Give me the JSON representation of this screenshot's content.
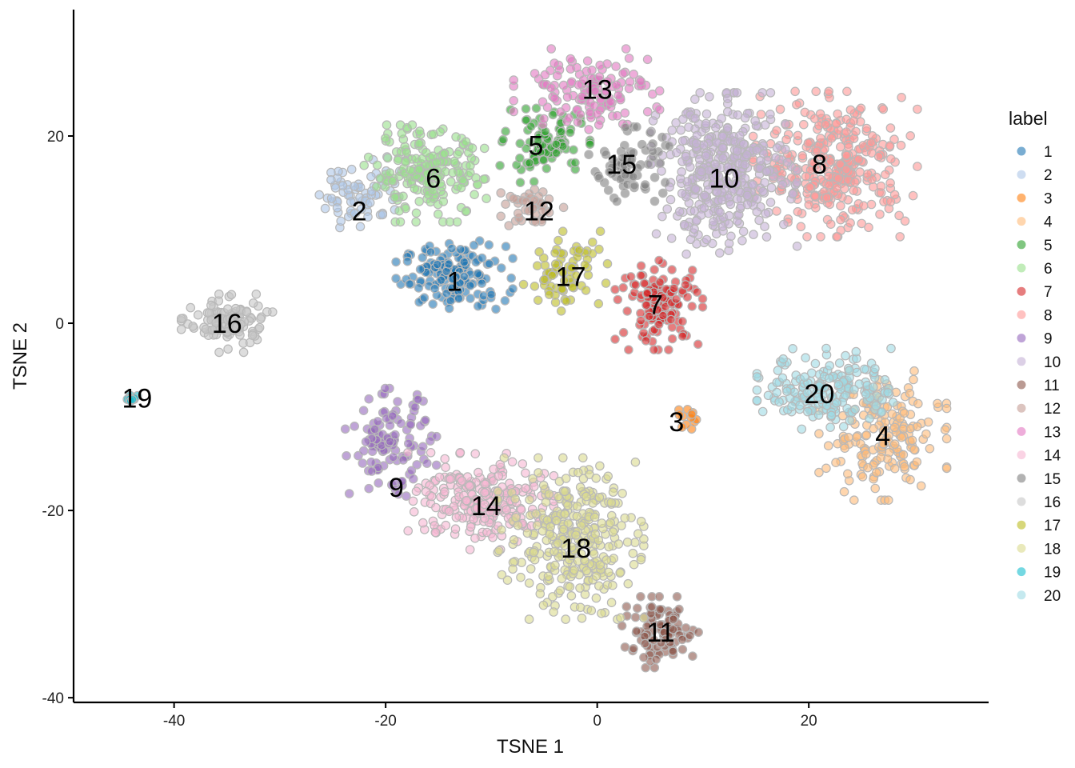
{
  "chart_data": {
    "type": "scatter",
    "xlabel": "TSNE 1",
    "ylabel": "TSNE 2",
    "xlim": [
      -49.5,
      37
    ],
    "ylim": [
      -40.5,
      33.5
    ],
    "xticks": [
      -40,
      -20,
      0,
      20
    ],
    "yticks": [
      -40,
      -20,
      0,
      20
    ],
    "grid": false,
    "legend": {
      "title": "label",
      "position": "right",
      "labels": [
        "1",
        "2",
        "3",
        "4",
        "5",
        "6",
        "7",
        "8",
        "9",
        "10",
        "11",
        "12",
        "13",
        "14",
        "15",
        "16",
        "17",
        "18",
        "19",
        "20"
      ]
    },
    "clusters": [
      {
        "label": "1",
        "color": "#1f77b4",
        "center": [
          -13.5,
          5
        ],
        "spread": [
          3.2,
          2.2
        ],
        "count": 160
      },
      {
        "label": "2",
        "color": "#aec7e8",
        "center": [
          -22.5,
          14
        ],
        "spread": [
          2.5,
          2.5
        ],
        "count": 70
      },
      {
        "label": "3",
        "color": "#ff7f0e",
        "center": [
          8,
          -10
        ],
        "spread": [
          0.8,
          0.9
        ],
        "count": 12
      },
      {
        "label": "4",
        "color": "#ffbb78",
        "center": [
          27,
          -12
        ],
        "spread": [
          3.5,
          4
        ],
        "count": 180
      },
      {
        "label": "5",
        "color": "#2ca02c",
        "center": [
          -5,
          19
        ],
        "spread": [
          2.5,
          2.3
        ],
        "count": 95
      },
      {
        "label": "6",
        "color": "#98df8a",
        "center": [
          -16,
          16
        ],
        "spread": [
          3.5,
          3
        ],
        "count": 190
      },
      {
        "label": "7",
        "color": "#d62728",
        "center": [
          6,
          2
        ],
        "spread": [
          2.5,
          2.8
        ],
        "count": 135
      },
      {
        "label": "8",
        "color": "#ff9896",
        "center": [
          22.5,
          17
        ],
        "spread": [
          4.5,
          4.5
        ],
        "count": 330
      },
      {
        "label": "9",
        "color": "#9467bd",
        "center": [
          -19.5,
          -13
        ],
        "spread": [
          2.5,
          3.5
        ],
        "count": 120
      },
      {
        "label": "10",
        "color": "#c5b0d5",
        "center": [
          12,
          16
        ],
        "spread": [
          4,
          5
        ],
        "count": 390
      },
      {
        "label": "11",
        "color": "#8c564b",
        "center": [
          6,
          -33
        ],
        "spread": [
          2.3,
          2.2
        ],
        "count": 100
      },
      {
        "label": "12",
        "color": "#c49c94",
        "center": [
          -6,
          12.5
        ],
        "spread": [
          1.8,
          1.5
        ],
        "count": 40
      },
      {
        "label": "13",
        "color": "#e377c2",
        "center": [
          -1,
          25
        ],
        "spread": [
          4,
          2.5
        ],
        "count": 130
      },
      {
        "label": "14",
        "color": "#f7b6d2",
        "center": [
          -11,
          -19
        ],
        "spread": [
          4,
          3
        ],
        "count": 230
      },
      {
        "label": "15",
        "color": "#7f7f7f",
        "center": [
          3,
          17
        ],
        "spread": [
          2.2,
          2.3
        ],
        "count": 75
      },
      {
        "label": "16",
        "color": "#c7c7c7",
        "center": [
          -35,
          0
        ],
        "spread": [
          2.5,
          1.8
        ],
        "count": 110
      },
      {
        "label": "17",
        "color": "#bcbd22",
        "center": [
          -3,
          5.5
        ],
        "spread": [
          2.3,
          2.5
        ],
        "count": 75
      },
      {
        "label": "18",
        "color": "#dbdb8d",
        "center": [
          -2.5,
          -23
        ],
        "spread": [
          4,
          5
        ],
        "count": 310
      },
      {
        "label": "19",
        "color": "#17becf",
        "center": [
          -44,
          -8
        ],
        "spread": [
          0.4,
          0.4
        ],
        "count": 10
      },
      {
        "label": "20",
        "color": "#9edae5",
        "center": [
          22,
          -7
        ],
        "spread": [
          4,
          2.5
        ],
        "count": 190
      }
    ],
    "cluster_labels": [
      {
        "text": "1",
        "x": -13.5,
        "y": 4.5
      },
      {
        "text": "2",
        "x": -22.5,
        "y": 12
      },
      {
        "text": "3",
        "x": 7.5,
        "y": -10.5
      },
      {
        "text": "4",
        "x": 27,
        "y": -12
      },
      {
        "text": "5",
        "x": -5.8,
        "y": 19
      },
      {
        "text": "6",
        "x": -15.5,
        "y": 15.5
      },
      {
        "text": "7",
        "x": 5.5,
        "y": 2
      },
      {
        "text": "8",
        "x": 21,
        "y": 17
      },
      {
        "text": "9",
        "x": -19,
        "y": -17.5
      },
      {
        "text": "10",
        "x": 12,
        "y": 15.5
      },
      {
        "text": "11",
        "x": 6,
        "y": -33
      },
      {
        "text": "12",
        "x": -5.5,
        "y": 12
      },
      {
        "text": "13",
        "x": 0,
        "y": 25
      },
      {
        "text": "14",
        "x": -10.5,
        "y": -19.5
      },
      {
        "text": "15",
        "x": 2.3,
        "y": 17
      },
      {
        "text": "16",
        "x": -35,
        "y": 0
      },
      {
        "text": "17",
        "x": -2.5,
        "y": 5
      },
      {
        "text": "18",
        "x": -2,
        "y": -24
      },
      {
        "text": "19",
        "x": -43.5,
        "y": -8
      },
      {
        "text": "20",
        "x": 21,
        "y": -7.5
      }
    ]
  }
}
